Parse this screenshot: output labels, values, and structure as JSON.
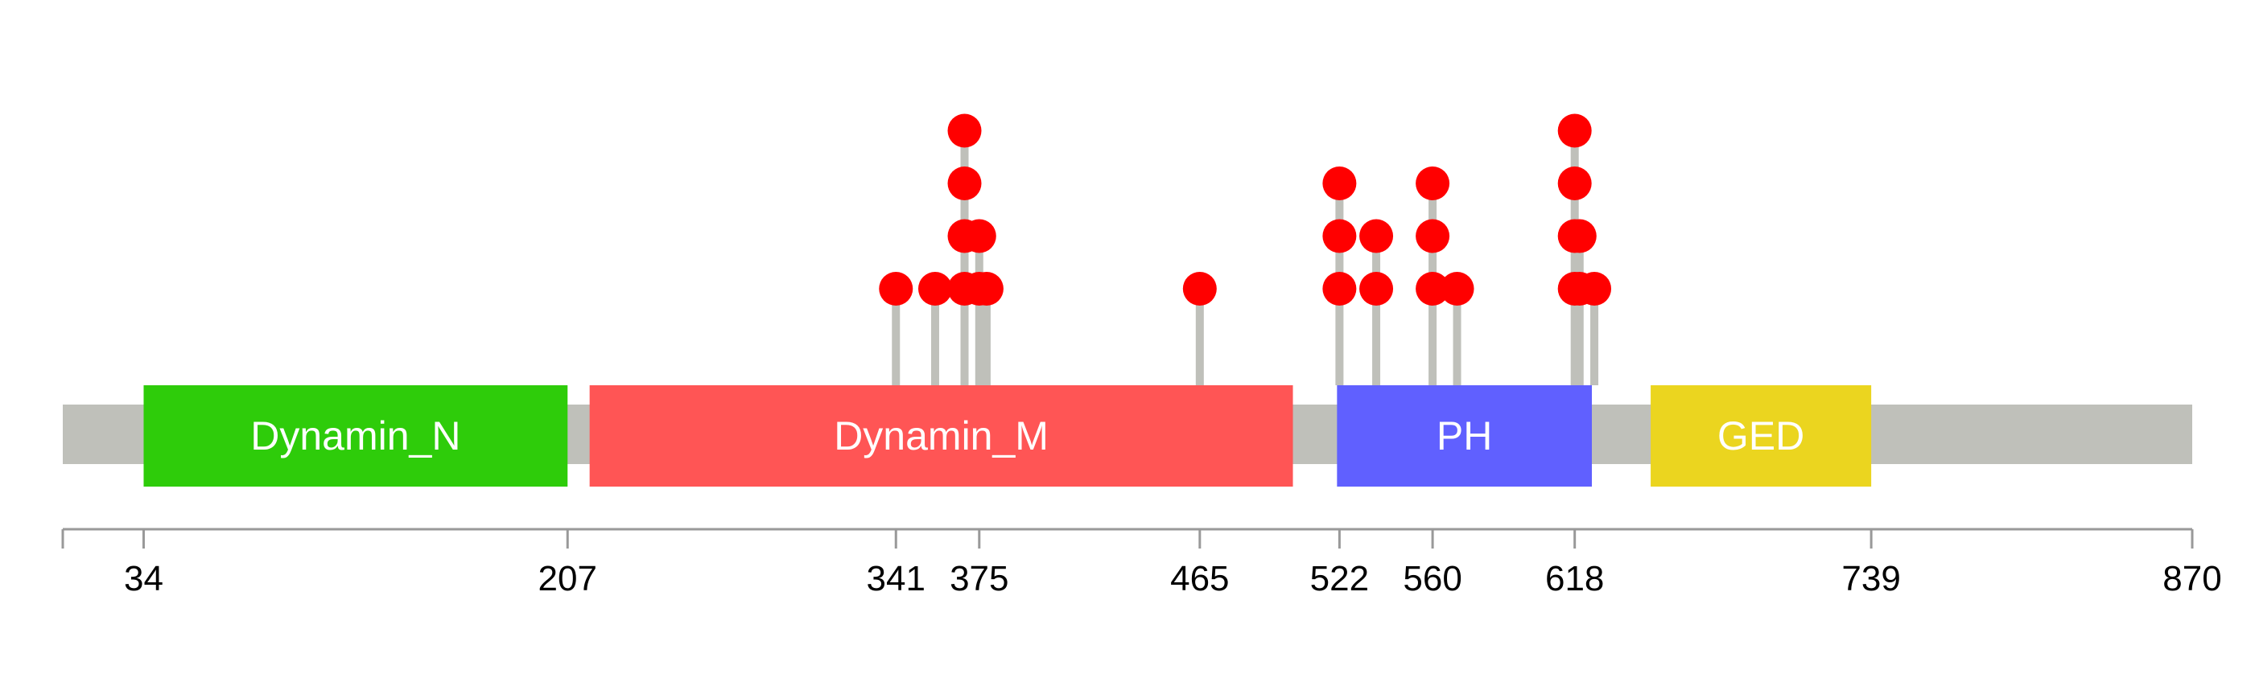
{
  "chart_data": {
    "type": "lollipop-protein-domain",
    "sequence_length": 870,
    "axis": {
      "min": 1,
      "max": 870,
      "ticks": [
        34,
        207,
        341,
        375,
        465,
        522,
        560,
        618,
        739,
        870
      ]
    },
    "domains": [
      {
        "name": "Dynamin_N",
        "start": 34,
        "end": 207,
        "color": "#2ECC0A"
      },
      {
        "name": "Dynamin_M",
        "start": 216,
        "end": 503,
        "color": "#FF5555"
      },
      {
        "name": "PH",
        "start": 521,
        "end": 625,
        "color": "#6060FF"
      },
      {
        "name": "GED",
        "start": 649,
        "end": 739,
        "color": "#EBD51F"
      }
    ],
    "mutations": [
      {
        "position": 341,
        "count": 1
      },
      {
        "position": 357,
        "count": 1
      },
      {
        "position": 369,
        "count": 4
      },
      {
        "position": 375,
        "count": 2
      },
      {
        "position": 378,
        "count": 1
      },
      {
        "position": 465,
        "count": 1
      },
      {
        "position": 522,
        "count": 3
      },
      {
        "position": 537,
        "count": 2
      },
      {
        "position": 560,
        "count": 3
      },
      {
        "position": 570,
        "count": 1
      },
      {
        "position": 618,
        "count": 4
      },
      {
        "position": 620,
        "count": 2
      },
      {
        "position": 626,
        "count": 1
      }
    ],
    "colors": {
      "backbone": "#BFC0BA",
      "stem": "#BFC0BA",
      "marker": "#FF0000",
      "axis": "#999999",
      "domain_label": "#FFFFFF",
      "tick_label": "#000000"
    }
  }
}
